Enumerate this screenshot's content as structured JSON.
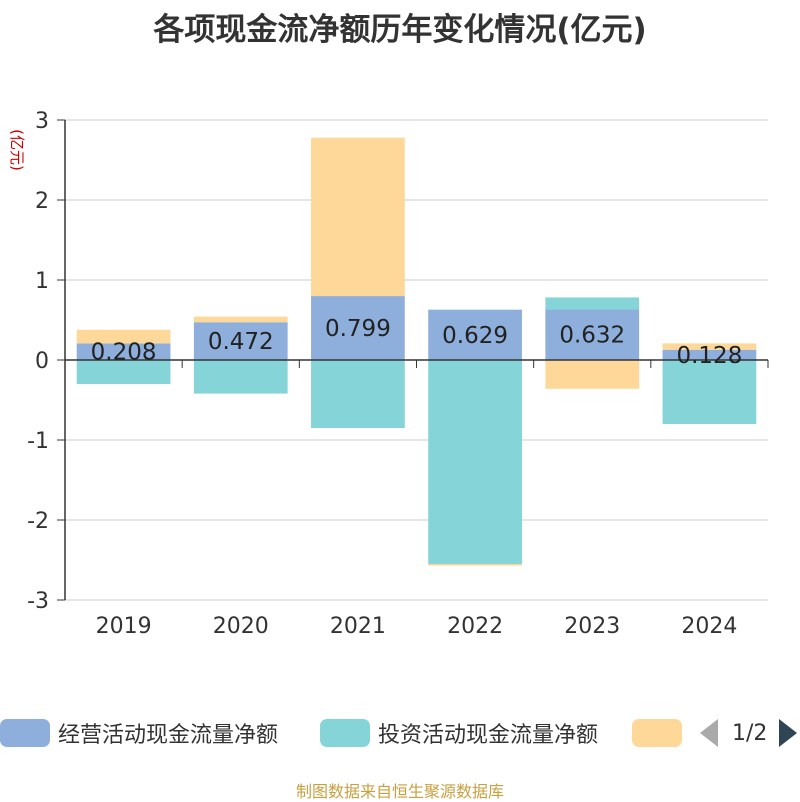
{
  "title": "各项现金流净额历年变化情况(亿元)",
  "source": "制图数据来自恒生聚源数据库",
  "legend_pager": "1/2",
  "chart_data": {
    "type": "bar",
    "stacked": true,
    "title": "各项现金流净额历年变化情况(亿元)",
    "ylabel": "(亿元)",
    "xlabel": "",
    "ylim": [
      -3,
      3
    ],
    "yticks": [
      3,
      2,
      1,
      0,
      -1,
      -2,
      -3
    ],
    "categories": [
      "2019",
      "2020",
      "2021",
      "2022",
      "2023",
      "2024"
    ],
    "series": [
      {
        "name": "经营活动现金流量净额",
        "color": "#8eaedb",
        "values": [
          0.208,
          0.472,
          0.799,
          0.629,
          0.632,
          0.128
        ],
        "labels": [
          "0.208",
          "0.472",
          "0.799",
          "0.629",
          "0.632",
          "0.128"
        ]
      },
      {
        "name": "投资活动现金流量净额",
        "color": "#85d4d8",
        "values": [
          -0.3,
          -0.42,
          -0.85,
          -2.55,
          0.15,
          -0.8
        ]
      },
      {
        "name": "",
        "color": "#fdd899",
        "values": [
          0.17,
          0.07,
          1.98,
          -0.02,
          -0.36,
          0.08
        ]
      }
    ],
    "legend_position": "bottom",
    "grid": true
  }
}
